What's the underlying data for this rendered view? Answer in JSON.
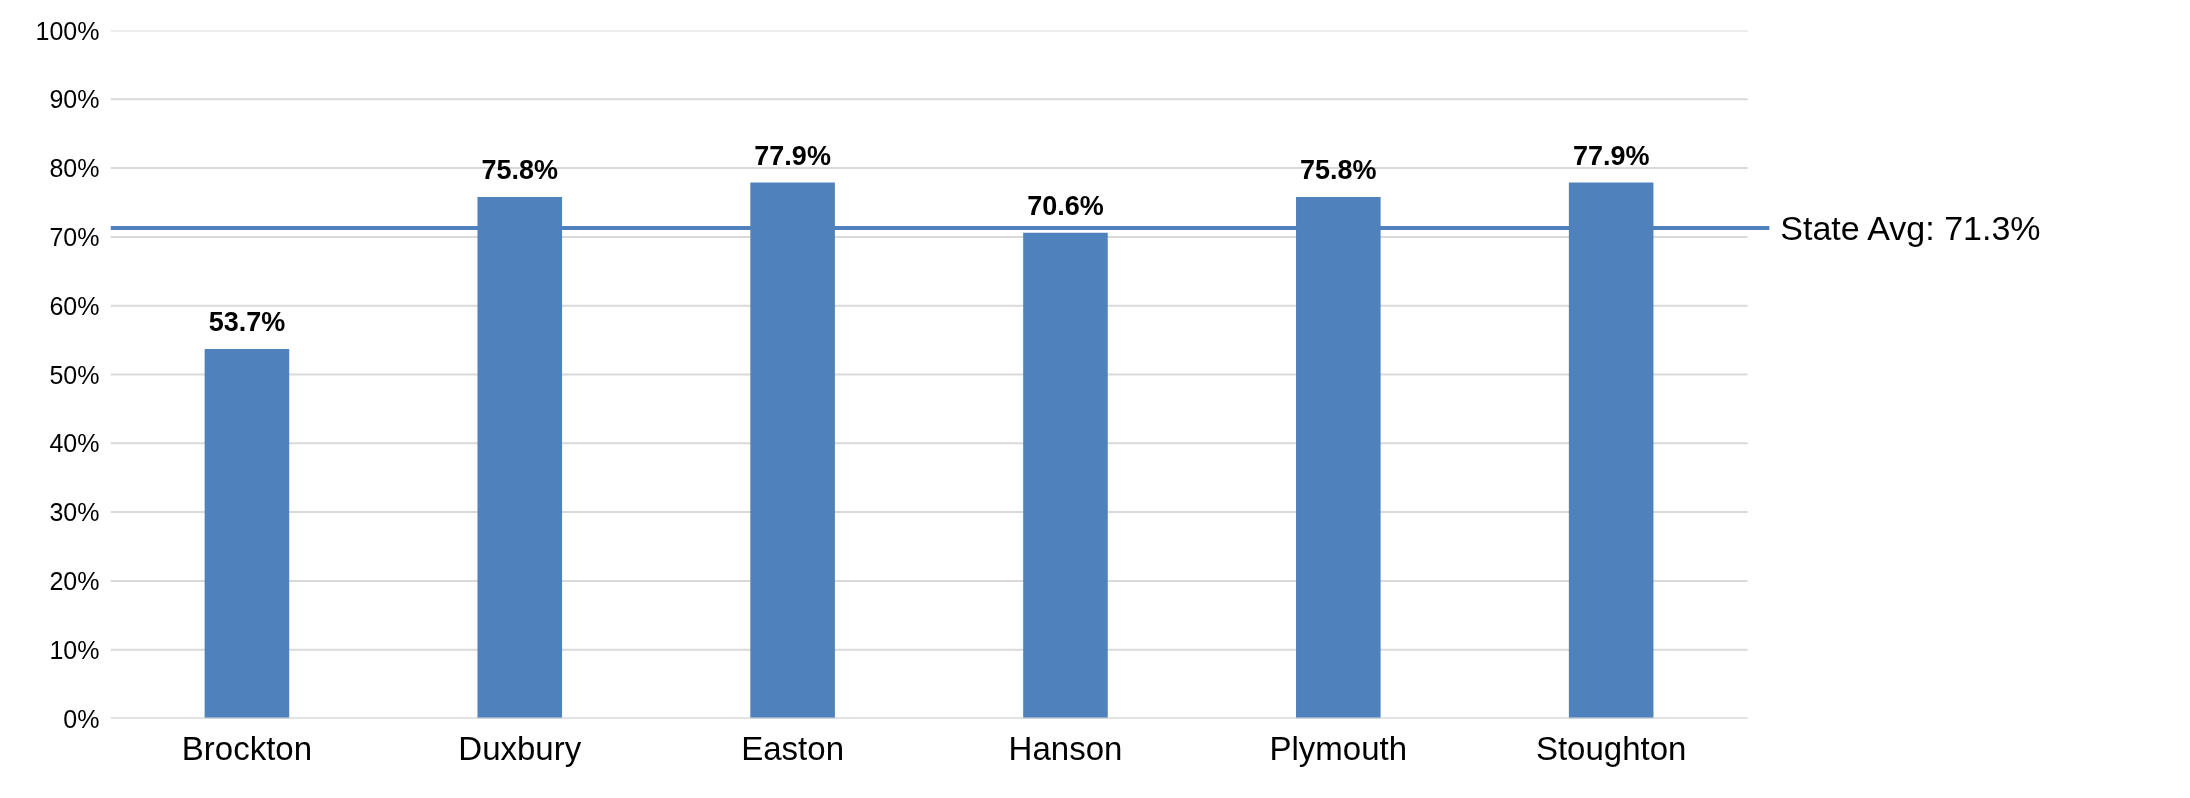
{
  "chart_data": {
    "type": "bar",
    "categories": [
      "Brockton",
      "Duxbury",
      "Easton",
      "Hanson",
      "Plymouth",
      "Stoughton"
    ],
    "values": [
      53.7,
      75.8,
      77.9,
      70.6,
      75.8,
      77.9
    ],
    "color": "#4f81bd",
    "value_labels": [
      "53.7%",
      "75.8%",
      "77.9%",
      "70.6%",
      "75.8%",
      "77.9%"
    ],
    "ylim": [
      0,
      100
    ],
    "yticks": [
      {
        "value": 0,
        "label": "0%"
      },
      {
        "value": 10,
        "label": "10%"
      },
      {
        "value": 20,
        "label": "20%"
      },
      {
        "value": 30,
        "label": "30%"
      },
      {
        "value": 40,
        "label": "40%"
      },
      {
        "value": 50,
        "label": "50%"
      },
      {
        "value": 60,
        "label": "60%"
      },
      {
        "value": 70,
        "label": "70%"
      },
      {
        "value": 80,
        "label": "80%"
      },
      {
        "value": 90,
        "label": "90%"
      },
      {
        "value": 100,
        "label": "100%"
      }
    ],
    "grid": "y",
    "ref_lines": [
      {
        "axis": "y",
        "value": 71.3,
        "label": "State Avg: 71.3%",
        "color": "#4f81bd"
      }
    ]
  }
}
